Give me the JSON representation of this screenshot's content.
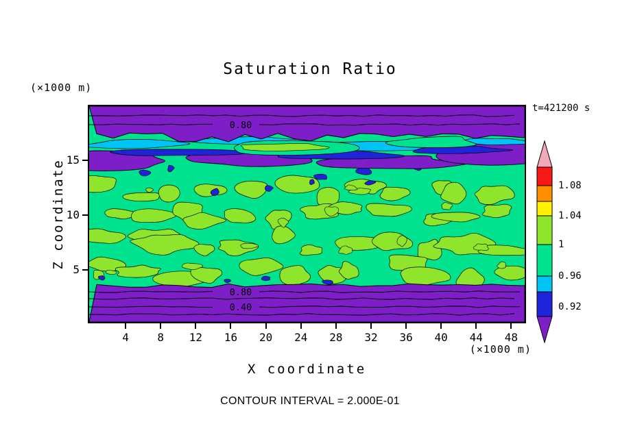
{
  "title": "Saturation Ratio",
  "time_label": "t=421200 s",
  "contour_note": "CONTOUR INTERVAL = 2.000E-01",
  "axes": {
    "x_label": "X coordinate",
    "x_unit": "(×1000 m)",
    "y_label": "Z coordinate",
    "y_unit": "(×1000 m)",
    "x_ticks": [
      "4",
      "8",
      "12",
      "16",
      "20",
      "24",
      "28",
      "32",
      "36",
      "40",
      "44",
      "48"
    ],
    "y_ticks": [
      "5",
      "10",
      "15"
    ]
  },
  "chart_data": {
    "type": "heatmap",
    "title": "Saturation Ratio",
    "time_label": "t=421200 s",
    "time_seconds": 421200,
    "contour_interval": 0.2,
    "x_axis": {
      "label": "X coordinate",
      "unit": "(×1000 m)",
      "range": [
        0,
        50
      ],
      "ticks": [
        4,
        8,
        12,
        16,
        20,
        24,
        28,
        32,
        36,
        40,
        44,
        48
      ]
    },
    "z_axis": {
      "label": "Z coordinate",
      "unit": "(×1000 m)",
      "range": [
        0,
        19.7
      ],
      "ticks": [
        5,
        10,
        15
      ]
    },
    "line_contour_labels": [
      "0.80",
      "0.80",
      "0.40"
    ],
    "colorbar": {
      "tick_labels": [
        "1.08",
        "1.04",
        "1",
        "0.96",
        "0.92"
      ],
      "bands_top_to_bottom": [
        "pink",
        "red",
        "orange",
        "yellow",
        "yellow_green",
        "spring_green",
        "cyan",
        "blue",
        "purple"
      ]
    },
    "regions": [
      {
        "z_km": [
          17.6,
          19.7
        ],
        "approx_value": "below 0.8 (lines 0.6, 0.8)",
        "color": "purple",
        "desc": "dry upper layer with labeled 0.80 contour"
      },
      {
        "z_km": [
          14.3,
          17.6
        ],
        "approx_value": "0.8 to 1.0",
        "color": "purple/cyan/blue/green streaks",
        "desc": "transition band with elongated streaks and green tongues"
      },
      {
        "z_km": [
          3.3,
          14.3
        ],
        "approx_value": "0.96 to 1.04",
        "color": "spring green with yellow-green blobs",
        "desc": "near-saturated turbulent interior"
      },
      {
        "z_km": [
          0,
          3.3
        ],
        "approx_value": "below 0.8 (lines 0.2-0.8)",
        "color": "purple",
        "desc": "dry surface layer with labeled 0.80 and 0.40 contours"
      }
    ],
    "colors": {
      "purple": "#7D1EC8",
      "blue": "#2024D8",
      "cyan": "#00C4F5",
      "spring_green": "#00E28E",
      "yellow_green": "#8FE42C",
      "yellow": "#FFF100",
      "orange": "#FF8E00",
      "red": "#F91818",
      "pink": "#F3A8BA",
      "frame": "#000000",
      "background": "#FFFFFF"
    }
  }
}
